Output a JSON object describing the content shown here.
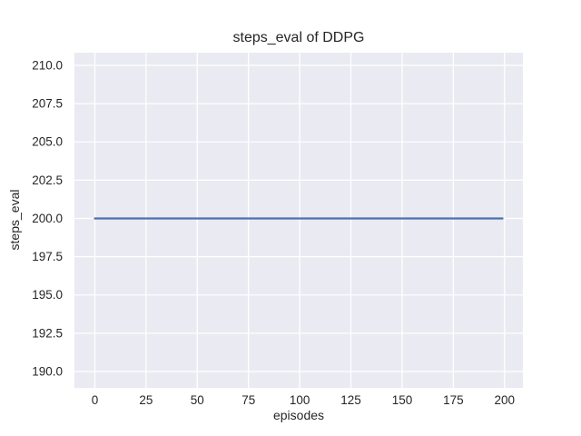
{
  "chart_data": {
    "type": "line",
    "title": "steps_eval of DDPG",
    "xlabel": "episodes",
    "ylabel": "steps_eval",
    "xlim": [
      -9.95,
      208.95
    ],
    "ylim": [
      188.93,
      210.83
    ],
    "x_ticks": [
      0,
      25,
      50,
      75,
      100,
      125,
      150,
      175,
      200
    ],
    "x_tick_labels": [
      "0",
      "25",
      "50",
      "75",
      "100",
      "125",
      "150",
      "175",
      "200"
    ],
    "y_ticks": [
      190.0,
      192.5,
      195.0,
      197.5,
      200.0,
      202.5,
      205.0,
      207.5,
      210.0
    ],
    "y_tick_labels": [
      "190.0",
      "192.5",
      "195.0",
      "197.5",
      "200.0",
      "202.5",
      "205.0",
      "207.5",
      "210.0"
    ],
    "grid": true,
    "legend": false,
    "series": [
      {
        "name": "DDPG",
        "color": "#4c72b0",
        "points": [
          [
            0,
            200
          ],
          [
            199,
            200
          ]
        ]
      }
    ],
    "colors": {
      "figure_background": "#ffffff",
      "plot_background": "#eaeaf2",
      "grid_color": "#ffffff",
      "text_color": "#262626"
    }
  }
}
